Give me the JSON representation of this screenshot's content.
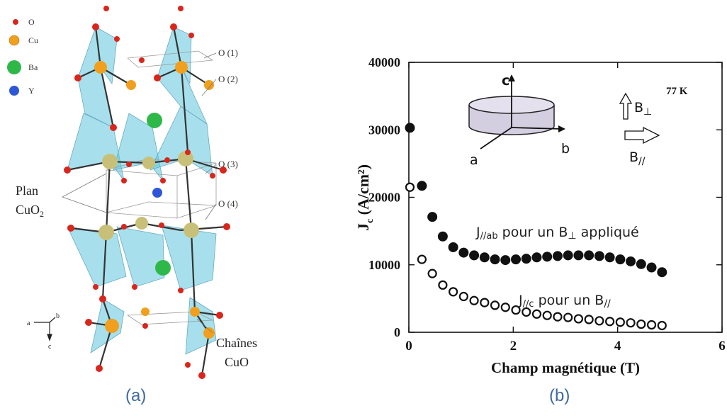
{
  "panels": {
    "a": "(a)",
    "b": "(b)"
  },
  "crystal": {
    "legend": [
      {
        "label": "O",
        "color": "#d9261c"
      },
      {
        "label": "Cu",
        "color": "#f0a01e"
      },
      {
        "label": "Ba",
        "color": "#2fb84a"
      },
      {
        "label": "Y",
        "color": "#2f56d6"
      }
    ],
    "site_labels": [
      "O (1)",
      "O (2)",
      "O (3)",
      "O (4)"
    ],
    "plan_label": {
      "line1": "Plan",
      "line2": "CuO",
      "sub": "2"
    },
    "chains_label": {
      "line1": "Chaînes",
      "line2": "CuO"
    },
    "axes": {
      "a": "a",
      "b": "b",
      "c": "c"
    }
  },
  "chart_data": {
    "type": "scatter",
    "title": "",
    "xlabel": "Champ magnétique (T)",
    "ylabel_main": "J",
    "ylabel_sub": "c",
    "ylabel_rest": " (A/cm²)",
    "xlim": [
      0,
      6
    ],
    "ylim": [
      0,
      40000
    ],
    "xticks": [
      0,
      2,
      4,
      6
    ],
    "yticks": [
      0,
      10000,
      20000,
      30000,
      40000
    ],
    "grid": false,
    "temperature": "77 K",
    "inset": {
      "c": "c",
      "a": "a",
      "b": "b",
      "bperp": "B",
      "bperp_sym": "⊥",
      "bpar": "B",
      "bpar_sym": "//"
    },
    "series": [
      {
        "filled": true,
        "label_j": "J",
        "label_j_sub": "//ab",
        "label_mid": " pour un B",
        "label_b_sub": "⊥",
        "label_end": " appliqué",
        "x": [
          0.02,
          0.25,
          0.45,
          0.65,
          0.85,
          1.05,
          1.25,
          1.45,
          1.65,
          1.85,
          2.05,
          2.25,
          2.45,
          2.65,
          2.85,
          3.05,
          3.25,
          3.45,
          3.65,
          3.85,
          4.05,
          4.25,
          4.45,
          4.65,
          4.85
        ],
        "y": [
          30300,
          21700,
          17100,
          14200,
          12600,
          11800,
          11400,
          11100,
          10800,
          10700,
          10800,
          10900,
          11100,
          11200,
          11300,
          11400,
          11400,
          11400,
          11300,
          11100,
          10800,
          10500,
          10100,
          9600,
          8900
        ]
      },
      {
        "filled": false,
        "label_j": "J",
        "label_j_sub": "//c",
        "label_mid": " pour un B",
        "label_b_sub": "//",
        "label_end": "",
        "x": [
          0.02,
          0.25,
          0.45,
          0.65,
          0.85,
          1.05,
          1.25,
          1.45,
          1.65,
          1.85,
          2.05,
          2.25,
          2.45,
          2.65,
          2.85,
          3.05,
          3.25,
          3.45,
          3.65,
          3.85,
          4.05,
          4.25,
          4.45,
          4.65,
          4.85
        ],
        "y": [
          21500,
          10800,
          8700,
          7000,
          6000,
          5300,
          4700,
          4400,
          4000,
          3700,
          3300,
          3000,
          2700,
          2500,
          2300,
          2200,
          2000,
          1900,
          1700,
          1600,
          1500,
          1400,
          1200,
          1100,
          1000
        ]
      }
    ]
  }
}
